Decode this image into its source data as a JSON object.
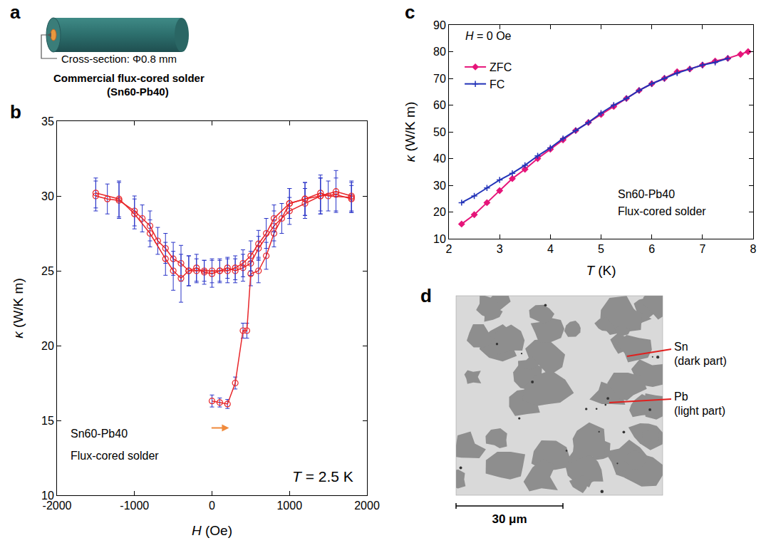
{
  "chart_data": [
    {
      "label": "b",
      "type": "scatter",
      "x_label": "H (Oe)",
      "y_label": "κ (W/K m)",
      "xlim": [
        -2000,
        2000
      ],
      "xticks": [
        -2000,
        -1000,
        0,
        1000,
        2000
      ],
      "ylim": [
        10,
        35
      ],
      "yticks": [
        10,
        15,
        20,
        25,
        30,
        35
      ],
      "grid": false,
      "annotations": [
        "Sn60-Pb40",
        "Flux-cored solder",
        "T = 2.5 K"
      ],
      "series": [
        {
          "color": "#e8262a",
          "marker": "circle-open",
          "line_style": "solid",
          "x": [
            0,
            100,
            200,
            300,
            400,
            450,
            500,
            600,
            700,
            800,
            900,
            1000,
            1200,
            1400,
            1500,
            1800
          ],
          "values": [
            16.3,
            16.2,
            16.1,
            17.5,
            21,
            21,
            24.8,
            25,
            26,
            27.5,
            28.5,
            29.5,
            29.8,
            30.2,
            30.0,
            29.9
          ],
          "error": [
            0.4,
            0.3,
            0.3,
            0.4,
            0.5,
            0.5,
            0.8,
            0.8,
            0.9,
            0.9,
            1.0,
            1.0,
            1.1,
            1.2,
            1.0,
            1.0
          ]
        },
        {
          "color": "#e8262a",
          "marker": "circle-open",
          "line_style": "solid",
          "x": [
            1800,
            1600,
            1400,
            1200,
            1000,
            800,
            600,
            500,
            400,
            300,
            200,
            100,
            0,
            -100,
            -200,
            -300,
            -400,
            -500,
            -600,
            -700,
            -800,
            -900,
            -1000,
            -1200,
            -1350,
            -1500
          ],
          "values": [
            29.8,
            30.1,
            30.0,
            29.5,
            29.0,
            28.0,
            26.5,
            25.5,
            25.2,
            25.0,
            25.2,
            25.0,
            24.8,
            24.9,
            25.2,
            25.0,
            25.5,
            25.8,
            26.5,
            27.0,
            28.0,
            28.5,
            29.0,
            29.7,
            29.8,
            30.0
          ],
          "error": [
            0.9,
            1.1,
            1.2,
            1.0,
            0.9,
            1.0,
            0.8,
            0.8,
            0.9,
            0.8,
            0.7,
            0.8,
            0.9,
            0.8,
            0.9,
            1.0,
            1.2,
            1.1,
            1.0,
            0.9,
            1.0,
            0.9,
            1.0,
            1.2,
            1.0,
            1.0
          ]
        },
        {
          "color": "#e8262a",
          "marker": "circle-open",
          "line_style": "solid",
          "x": [
            -1500,
            -1200,
            -1000,
            -800,
            -600,
            -500,
            -400,
            -300,
            -200,
            -100,
            0,
            100,
            200,
            300,
            400,
            500,
            600,
            700,
            800,
            1000,
            1200,
            1400,
            1600,
            1800
          ],
          "values": [
            30.2,
            29.8,
            28.8,
            27.5,
            25.8,
            25.0,
            24.5,
            25.0,
            25.0,
            25.0,
            25.0,
            25.0,
            25.0,
            25.2,
            25.5,
            26.0,
            26.8,
            27.5,
            28.5,
            29.5,
            29.8,
            30.0,
            30.3,
            30.0
          ],
          "error": [
            1.0,
            1.2,
            1.0,
            0.9,
            1.1,
            1.3,
            1.6,
            1.0,
            0.8,
            0.7,
            0.8,
            0.7,
            0.8,
            0.8,
            0.9,
            1.0,
            0.9,
            1.0,
            0.9,
            1.0,
            1.1,
            1.2,
            1.4,
            1.0
          ]
        }
      ]
    },
    {
      "label": "c",
      "type": "line",
      "x_label": "T (K)",
      "y_label": "κ (W/K m)",
      "xlim": [
        2,
        8
      ],
      "xticks": [
        2,
        3,
        4,
        5,
        6,
        7,
        8
      ],
      "ylim": [
        10,
        90
      ],
      "yticks": [
        10,
        20,
        30,
        40,
        50,
        60,
        70,
        80,
        90
      ],
      "grid": false,
      "legend": "top left",
      "annotations": [
        "H = 0 Oe",
        "Sn60-Pb40",
        "Flux-cored solder"
      ],
      "series": [
        {
          "name": "ZFC",
          "color": "#e6157a",
          "marker": "diamond",
          "line_style": "solid",
          "x": [
            2.25,
            2.5,
            2.75,
            3,
            3.25,
            3.5,
            3.75,
            4,
            4.25,
            4.5,
            4.75,
            5,
            5.25,
            5.5,
            5.75,
            6,
            6.25,
            6.5,
            6.75,
            7,
            7.25,
            7.5,
            7.75,
            7.9
          ],
          "values": [
            15.5,
            19,
            23.5,
            28,
            32.5,
            36,
            40,
            43.5,
            47,
            50.5,
            53.5,
            56.5,
            59.5,
            62.5,
            65.5,
            68,
            70,
            72.5,
            73.5,
            75,
            76.5,
            77.5,
            79,
            80
          ]
        },
        {
          "name": "FC",
          "color": "#2233b8",
          "marker": "cross-thin",
          "line_style": "solid",
          "x": [
            2.25,
            2.5,
            2.75,
            3,
            3.25,
            3.5,
            3.75,
            4,
            4.25,
            4.5,
            4.75,
            5,
            5.25,
            5.5,
            5.75,
            6,
            6.25,
            6.5,
            6.75,
            7,
            7.25,
            7.5
          ],
          "values": [
            23.5,
            26,
            29,
            32,
            34.5,
            37.5,
            41,
            44,
            47.5,
            50.5,
            53.5,
            57,
            60,
            62.5,
            65.5,
            68,
            70,
            72,
            73.5,
            75,
            76,
            77.5
          ]
        }
      ]
    }
  ],
  "panel_a": {
    "label": "a",
    "callout": "Cross-section: Φ0.8 mm",
    "title": [
      "Commercial flux-cored solder",
      "(Sn60-Pb40)"
    ]
  },
  "panel_d": {
    "label": "d",
    "phases": [
      {
        "name": "Sn",
        "note": "(dark part)"
      },
      {
        "name": "Pb",
        "note": "(light part)"
      }
    ],
    "scale_bar": "30 μm"
  }
}
